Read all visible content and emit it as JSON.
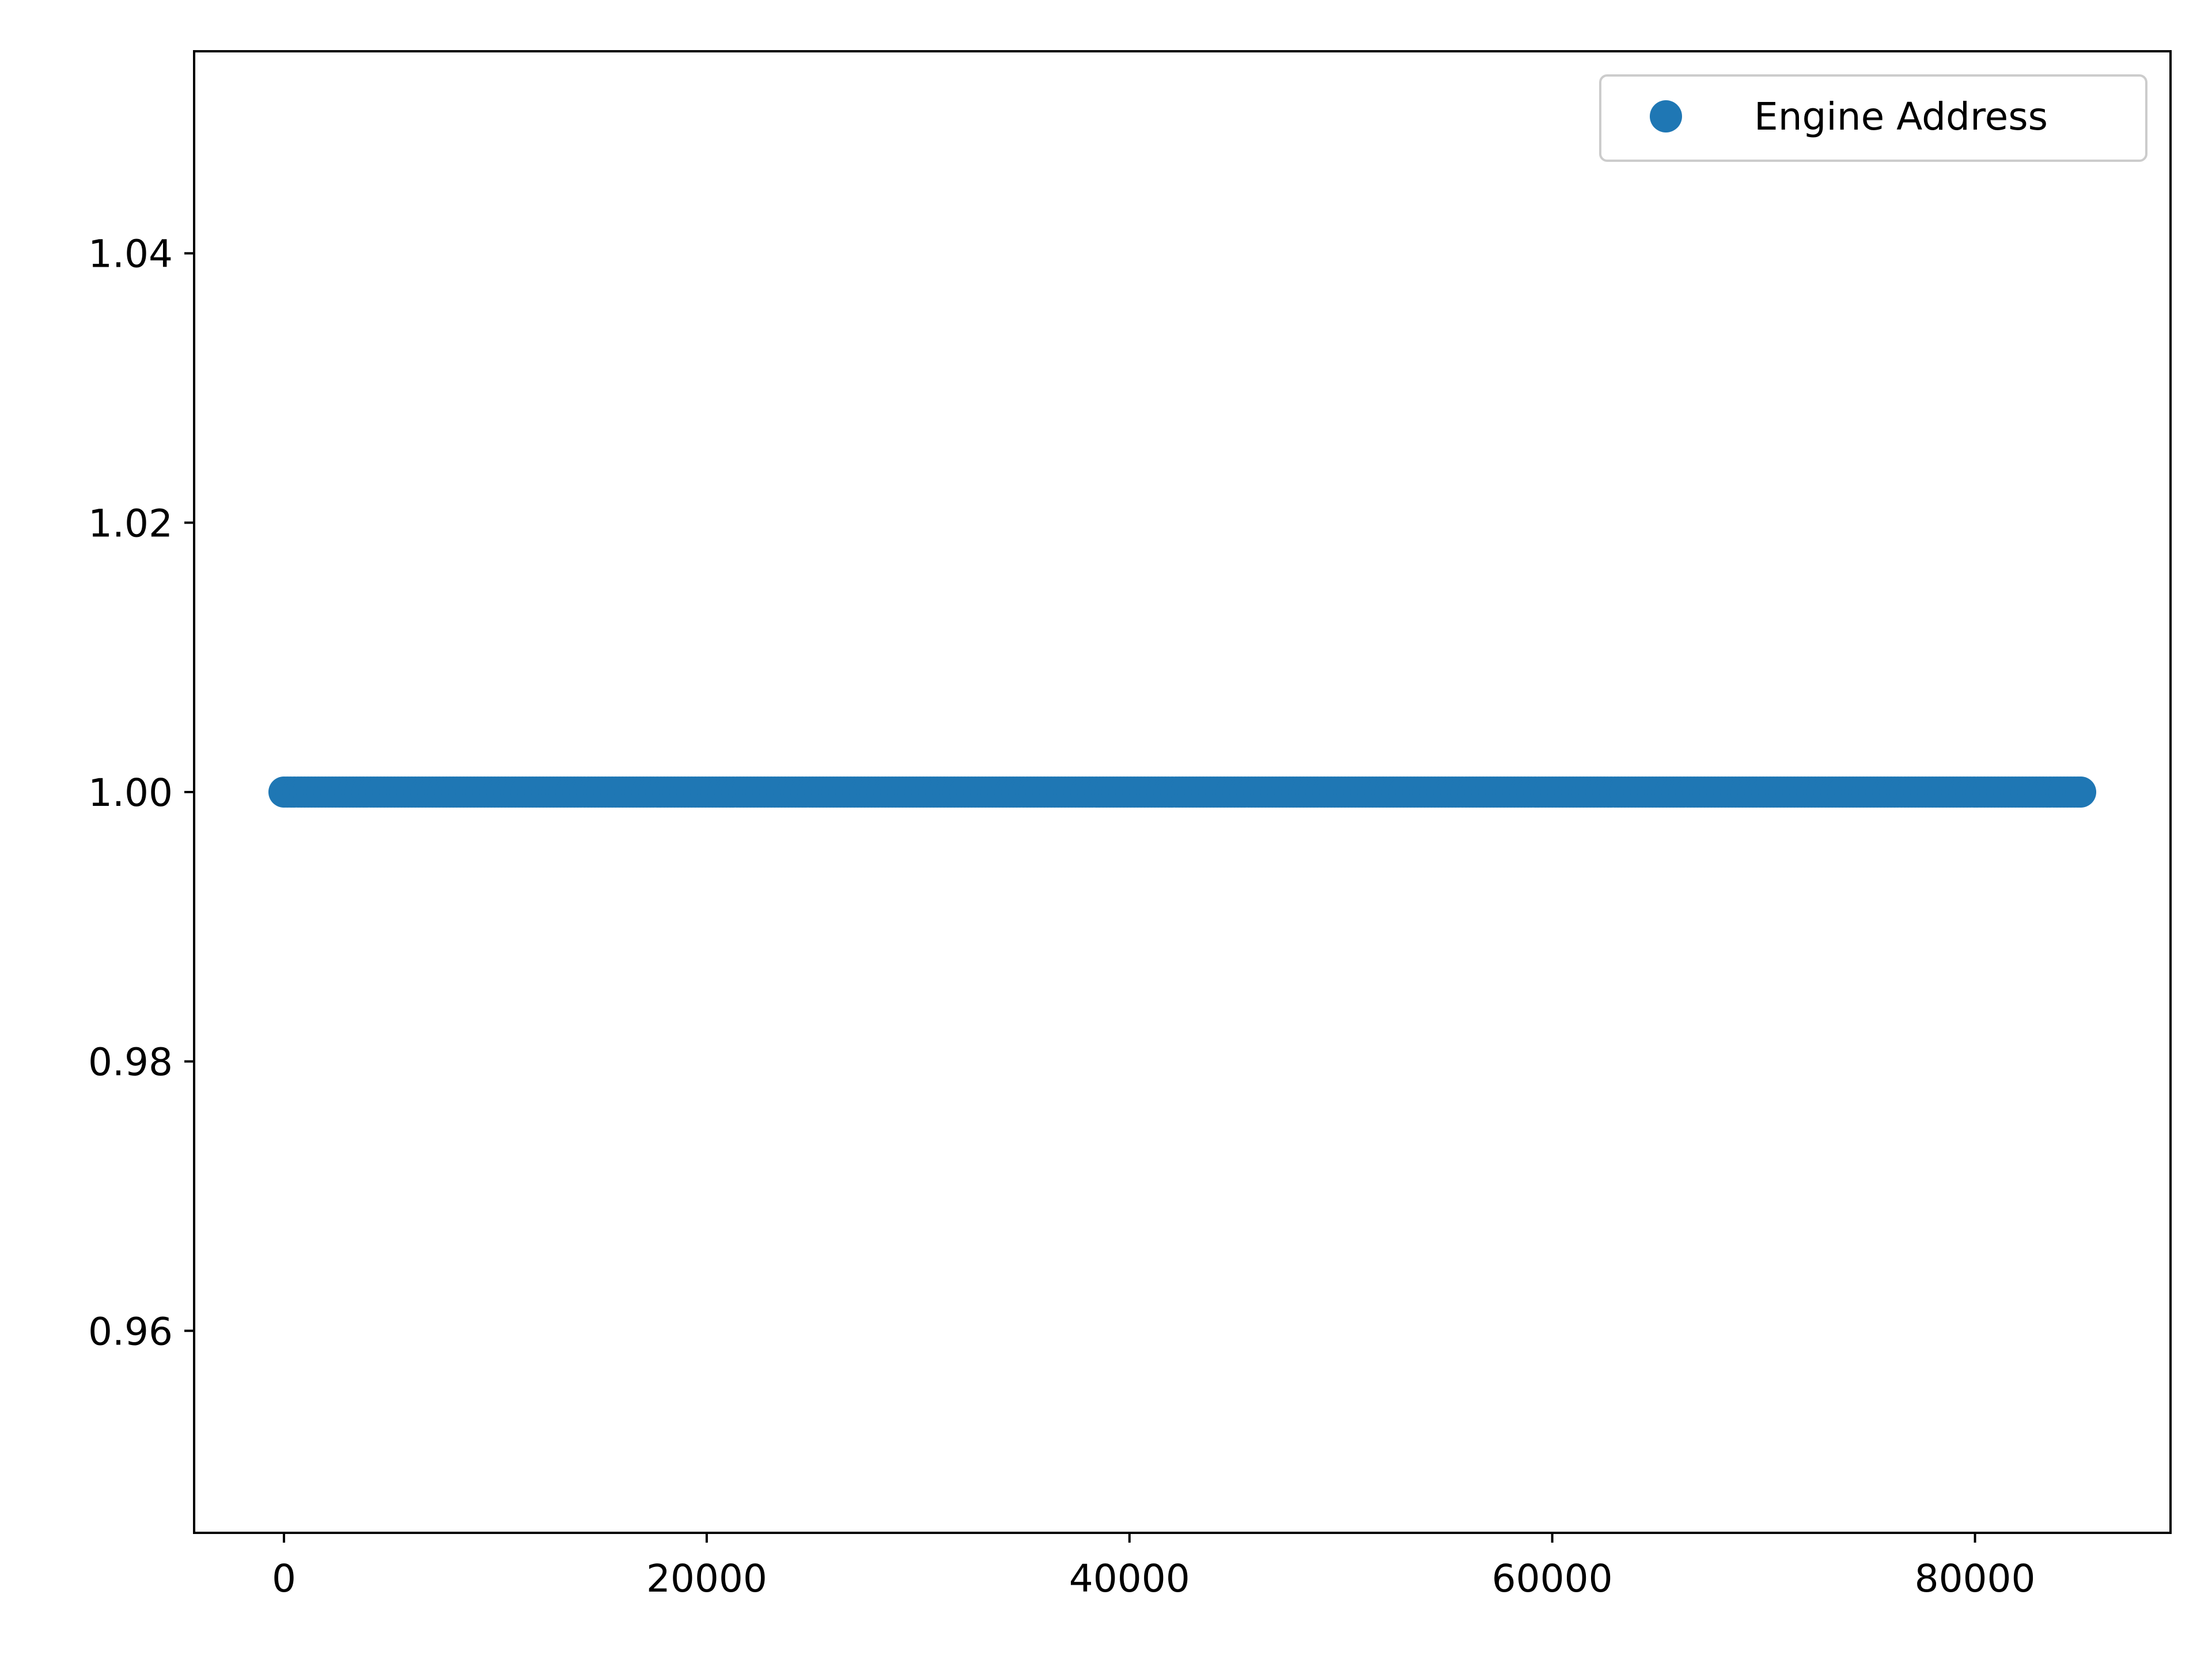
{
  "chart_data": {
    "type": "scatter",
    "title": "",
    "xlabel": "",
    "ylabel": "",
    "xlim": [
      -4250,
      89250
    ],
    "ylim": [
      0.945,
      1.055
    ],
    "x_ticks": [
      0,
      20000,
      40000,
      60000,
      80000
    ],
    "x_tick_labels": [
      "0",
      "20000",
      "40000",
      "60000",
      "80000"
    ],
    "y_ticks": [
      0.96,
      0.98,
      1.0,
      1.02,
      1.04
    ],
    "y_tick_labels": [
      "0.96",
      "0.98",
      "1.00",
      "1.02",
      "1.04"
    ],
    "grid": false,
    "legend": {
      "position": "top-right"
    },
    "series": [
      {
        "name": "Engine Address",
        "color": "#1f77b4",
        "marker": "circle",
        "x_start": 0,
        "x_end": 85000,
        "x_step": 1,
        "y": 1.0
      }
    ]
  }
}
